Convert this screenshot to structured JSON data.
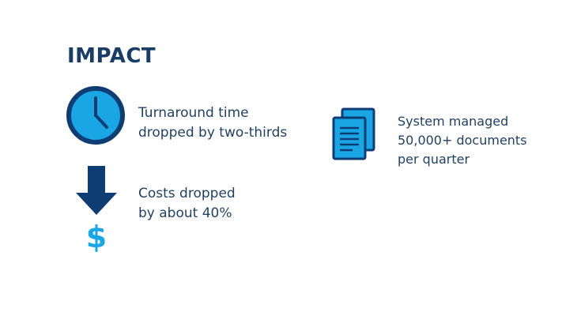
{
  "header": {
    "title": "IMPACT"
  },
  "colors": {
    "navy": "#0e3d73",
    "accent_blue": "#1aa6e4",
    "text": "#1f3f5f"
  },
  "icons": {
    "clock": "clock-icon",
    "arrow": "arrow-down-icon",
    "dollar": "dollar-sign-icon",
    "documents": "documents-icon",
    "dollar_glyph": "$"
  },
  "stats": {
    "turnaround": {
      "line1": "Turnaround time",
      "line2": "dropped by two-thirds"
    },
    "costs": {
      "line1": "Costs dropped",
      "line2": "by about 40%"
    },
    "documents": {
      "line1": "System managed",
      "line2": "50,000+ documents",
      "line3": "per quarter"
    }
  }
}
